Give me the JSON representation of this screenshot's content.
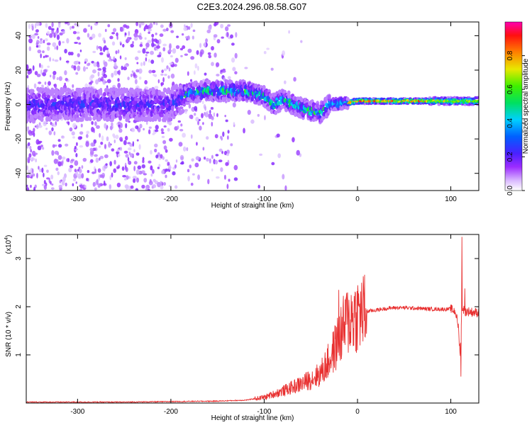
{
  "title": "C2E3.2024.296.08.58.G07",
  "chart_data": [
    {
      "type": "heatmap",
      "xlabel": "Height of straight line (km)",
      "ylabel": "Frequency (Hz)",
      "xlim": [
        -355,
        130
      ],
      "ylim": [
        -50,
        48
      ],
      "xticks": [
        -300,
        -200,
        -100,
        0,
        100
      ],
      "yticks": [
        -40,
        -20,
        0,
        20,
        40
      ],
      "colorbar": {
        "label": "Normalized spectral amplitude",
        "range": [
          0,
          1
        ],
        "ticks": [
          "0.0",
          "0.2",
          "0.4",
          "0.6",
          "0.8"
        ],
        "colors": [
          "#ffffff",
          "#9c2cff",
          "#2020ff",
          "#00c8ff",
          "#00e000",
          "#e8e800",
          "#ff8000",
          "#ff0000",
          "#ff00b0"
        ]
      },
      "ridge": [
        {
          "x": -350,
          "f": 0
        },
        {
          "x": -300,
          "f": 0
        },
        {
          "x": -250,
          "f": 0
        },
        {
          "x": -200,
          "f": 0
        },
        {
          "x": -180,
          "f": 7
        },
        {
          "x": -150,
          "f": 8
        },
        {
          "x": -120,
          "f": 8
        },
        {
          "x": -100,
          "f": 5
        },
        {
          "x": -90,
          "f": 0
        },
        {
          "x": -80,
          "f": 3
        },
        {
          "x": -60,
          "f": -2
        },
        {
          "x": -40,
          "f": -5
        },
        {
          "x": -30,
          "f": 0
        },
        {
          "x": -10,
          "f": 1
        },
        {
          "x": 0,
          "f": 2
        },
        {
          "x": 50,
          "f": 2
        },
        {
          "x": 100,
          "f": 2
        },
        {
          "x": 130,
          "f": 2
        }
      ]
    },
    {
      "type": "line",
      "xlabel": "Height of straight line (km)",
      "ylabel": "SNR (10 * v/v)",
      "yscale_label": "(x10",
      "yscale_exp": "4",
      "yscale_close": ")",
      "xlim": [
        -355,
        130
      ],
      "ylim": [
        0,
        3.5
      ],
      "xticks": [
        -300,
        -200,
        -100,
        0,
        100
      ],
      "yticks": [
        1,
        2,
        3
      ],
      "line_color": "#e83030",
      "series": [
        {
          "x": [
            -355,
            -300,
            -250,
            -200,
            -150,
            -120,
            -100,
            -80,
            -60,
            -40,
            -30,
            -25,
            -20,
            -15,
            -10,
            -5,
            0,
            10,
            20,
            30,
            40,
            50,
            60,
            70,
            80,
            90,
            100,
            105,
            108,
            110,
            112,
            115,
            120,
            125,
            130
          ],
          "y": [
            0.02,
            0.02,
            0.02,
            0.03,
            0.04,
            0.06,
            0.12,
            0.25,
            0.4,
            0.6,
            0.9,
            1.1,
            1.35,
            1.55,
            1.72,
            1.8,
            1.85,
            1.9,
            1.93,
            1.96,
            1.98,
            1.98,
            1.97,
            1.96,
            1.95,
            1.95,
            1.95,
            1.9,
            1.6,
            1.0,
            2.0,
            1.9,
            1.9,
            1.88,
            1.88
          ]
        }
      ],
      "spikes": [
        {
          "x": -20,
          "y": 2.35
        },
        {
          "x": -12,
          "y": 2.2
        },
        {
          "x": 112,
          "y": 3.45
        },
        {
          "x": 111,
          "y": 0.55
        },
        {
          "x": 115,
          "y": 2.38
        }
      ]
    }
  ]
}
